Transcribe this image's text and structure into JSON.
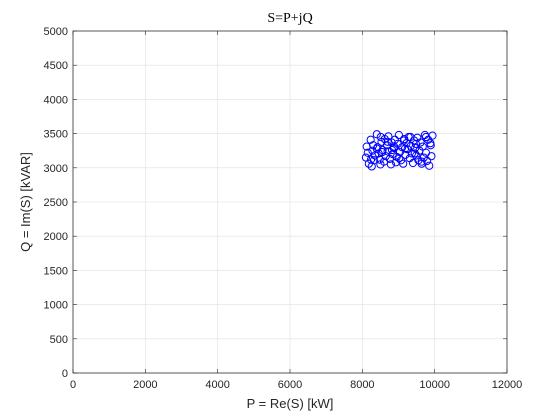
{
  "chart_data": {
    "type": "scatter",
    "title": "S=P+jQ",
    "xlabel": "P = Re(S) [kW]",
    "ylabel": "Q = Im(S) [kVAR]",
    "xlim": [
      0,
      12000
    ],
    "ylim": [
      0,
      5000
    ],
    "xticks": [
      0,
      2000,
      4000,
      6000,
      8000,
      10000,
      12000
    ],
    "yticks": [
      0,
      500,
      1000,
      1500,
      2000,
      2500,
      3000,
      3500,
      4000,
      4500,
      5000
    ],
    "grid": true,
    "marker": "circle-open",
    "color": "#0000ff",
    "series": [
      {
        "x": [
          8120,
          8150,
          8100,
          8180,
          8230,
          8260,
          8300,
          8350,
          8280,
          8320,
          8400,
          8420,
          8450,
          8480,
          8510,
          8530,
          8560,
          8600,
          8620,
          8650,
          8680,
          8700,
          8720,
          8760,
          8790,
          8810,
          8840,
          8870,
          8900,
          8930,
          8950,
          8980,
          9010,
          9040,
          9070,
          9100,
          9130,
          9160,
          9190,
          9220,
          9250,
          9280,
          9310,
          9340,
          9370,
          9400,
          9430,
          9460,
          9490,
          9520,
          9550,
          9580,
          9610,
          9640,
          9670,
          9700,
          9730,
          9760,
          9790,
          9820,
          9850,
          9880,
          9910,
          9940,
          8240,
          8550,
          8880,
          9180,
          9480,
          9760,
          8400,
          8700,
          9020,
          9330,
          9640,
          9890,
          8500,
          8820,
          9150,
          9450
        ],
        "y": [
          3310,
          3220,
          3150,
          3060,
          3410,
          3020,
          3330,
          3180,
          3250,
          3110,
          3490,
          3300,
          3210,
          3120,
          3450,
          3380,
          3260,
          3090,
          3420,
          3170,
          3330,
          3240,
          3460,
          3130,
          3050,
          3370,
          3200,
          3290,
          3410,
          3080,
          3160,
          3350,
          3480,
          3230,
          3110,
          3300,
          3060,
          3420,
          3190,
          3360,
          3270,
          3450,
          3140,
          3320,
          3210,
          3070,
          3400,
          3290,
          3180,
          3440,
          3110,
          3250,
          3370,
          3060,
          3310,
          3150,
          3480,
          3220,
          3100,
          3410,
          3030,
          3360,
          3170,
          3470,
          3120,
          3230,
          3310,
          3280,
          3350,
          3450,
          3280,
          3380,
          3140,
          3450,
          3090,
          3330,
          3050,
          3260,
          3400,
          3210
        ]
      }
    ]
  }
}
